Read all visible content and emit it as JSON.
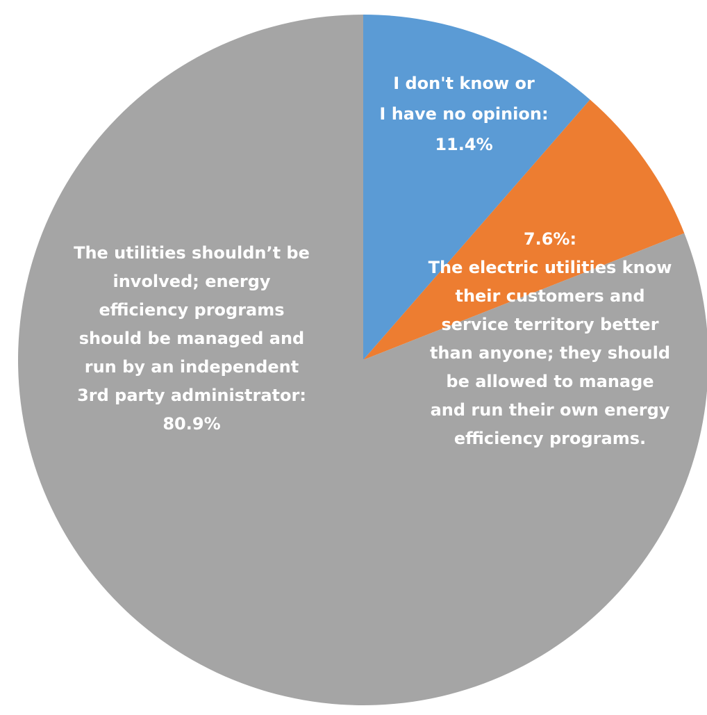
{
  "chart_data": {
    "type": "pie",
    "start_angle": "12 o'clock",
    "direction": "clockwise",
    "slices": [
      {
        "category": "I don't know or I have no opinion",
        "value": 11.4,
        "color": "#5B9BD5",
        "label_lines": [
          "I don't know or",
          "I have no opinion:",
          "11.4%"
        ]
      },
      {
        "category": "The electric utilities know their customers and service territory better than anyone; they should be allowed to manage and run their own energy efficiency programs.",
        "value": 7.6,
        "color": "#ED7D31",
        "label_lines": [
          "7.6%:",
          "The electric utilities know",
          "their customers and",
          "service territory better",
          "than anyone; they should",
          "be allowed to manage",
          "and run their own energy",
          "efficiency programs."
        ]
      },
      {
        "category": "The utilities shouldn’t be involved; energy efficiency programs should be managed and run by an independent 3rd party administrator",
        "value": 80.9,
        "color": "#A5A5A5",
        "label_lines": [
          "The utilities shouldn’t be",
          "involved; energy",
          "efficiency programs",
          "should be managed and",
          "run by an independent",
          "3rd party administrator:",
          "80.9%"
        ]
      }
    ]
  }
}
